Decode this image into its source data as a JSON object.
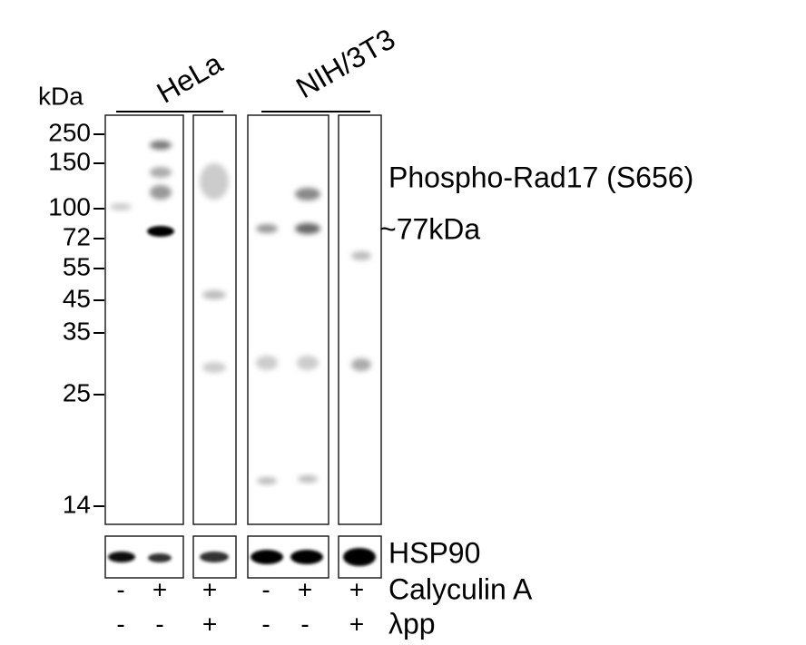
{
  "marker_unit": "kDa",
  "markers": [
    "250",
    "150",
    "100",
    "72",
    "55",
    "45",
    "35",
    "25",
    "14"
  ],
  "cell_lines": [
    "HeLa",
    "NIH/3T3"
  ],
  "antibody": "Phospho-Rad17 (S656)",
  "band_size": "~77kDa",
  "loading_control": "HSP90",
  "treatments": [
    {
      "name": "Calyculin A",
      "signs": [
        "-",
        "+",
        "+",
        "-",
        "+",
        "+"
      ]
    },
    {
      "name": "λpp",
      "signs": [
        "-",
        "-",
        "+",
        "-",
        "-",
        "+"
      ]
    }
  ]
}
